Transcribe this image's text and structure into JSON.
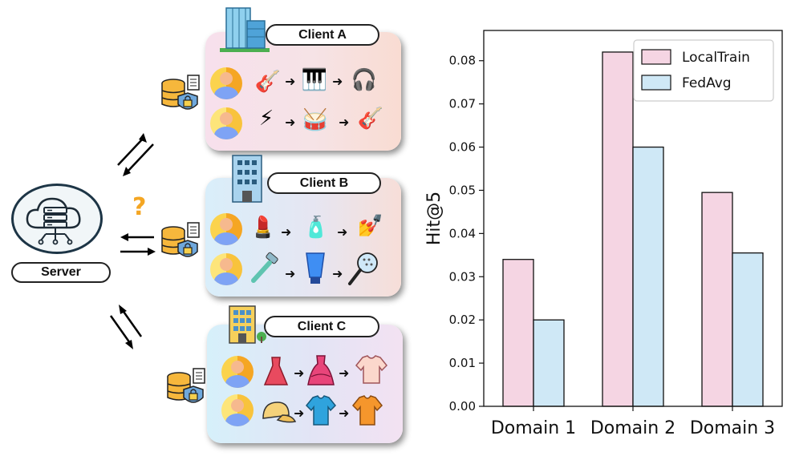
{
  "server": {
    "label": "Server"
  },
  "question_mark": "?",
  "clients": [
    {
      "label": "Client A"
    },
    {
      "label": "Client B"
    },
    {
      "label": "Client C"
    }
  ],
  "colors": {
    "local_train": "#f5d5e3",
    "fed_avg": "#cfe8f6",
    "panel_a": "#f7e1e8",
    "panel_b": "#dbe9f6",
    "panel_c": "#dcecf8"
  },
  "chart_data": {
    "type": "bar",
    "categories": [
      "Domain 1",
      "Domain 2",
      "Domain 3"
    ],
    "series": [
      {
        "name": "LocalTrain",
        "values": [
          0.034,
          0.082,
          0.0495
        ]
      },
      {
        "name": "FedAvg",
        "values": [
          0.02,
          0.06,
          0.0355
        ]
      }
    ],
    "ylabel": "Hit@5",
    "xlabel": "",
    "title": "",
    "ylim": [
      0,
      0.087
    ],
    "yticks": [
      "0.00",
      "0.01",
      "0.02",
      "0.03",
      "0.04",
      "0.05",
      "0.06",
      "0.07",
      "0.08"
    ],
    "legend_position": "top-right",
    "grid": false
  }
}
